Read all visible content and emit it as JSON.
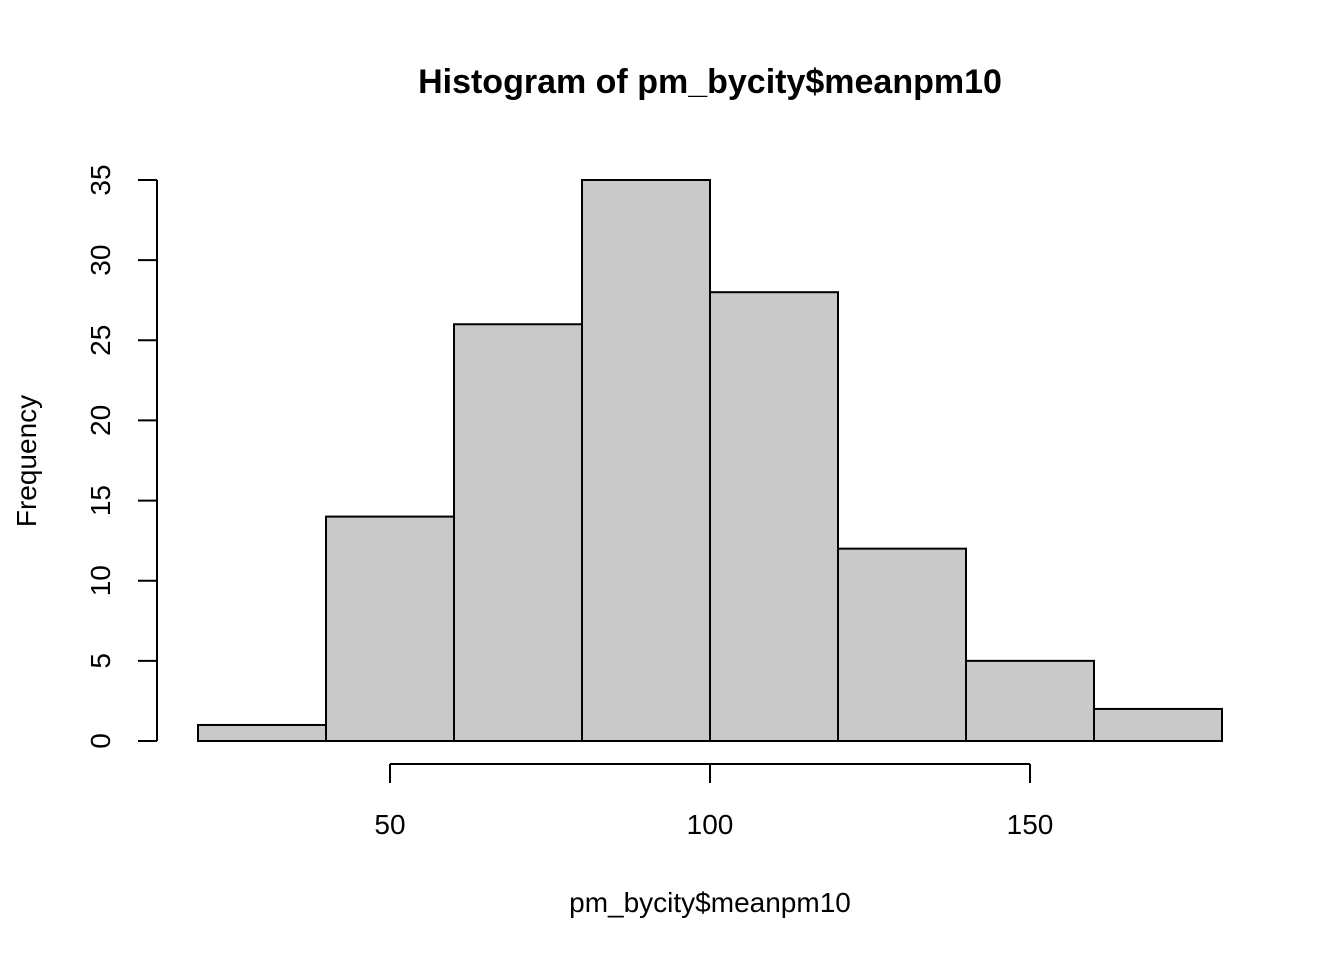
{
  "chart_data": {
    "type": "bar",
    "title": "Histogram of pm_bycity$meanpm10",
    "xlabel": "pm_bycity$meanpm10",
    "ylabel": "Frequency",
    "bins": [
      {
        "start": 20,
        "end": 40,
        "count": 1
      },
      {
        "start": 40,
        "end": 60,
        "count": 14
      },
      {
        "start": 60,
        "end": 80,
        "count": 26
      },
      {
        "start": 80,
        "end": 100,
        "count": 35
      },
      {
        "start": 100,
        "end": 120,
        "count": 28
      },
      {
        "start": 120,
        "end": 140,
        "count": 12
      },
      {
        "start": 140,
        "end": 160,
        "count": 5
      },
      {
        "start": 160,
        "end": 180,
        "count": 2
      }
    ],
    "xticks": [
      50,
      100,
      150
    ],
    "yticks": [
      0,
      5,
      10,
      15,
      20,
      25,
      30,
      35
    ],
    "xlim": [
      20,
      180
    ],
    "ylim": [
      0,
      35
    ],
    "bar_fill": "#c9c9c9",
    "grid": false,
    "legend": "none"
  }
}
